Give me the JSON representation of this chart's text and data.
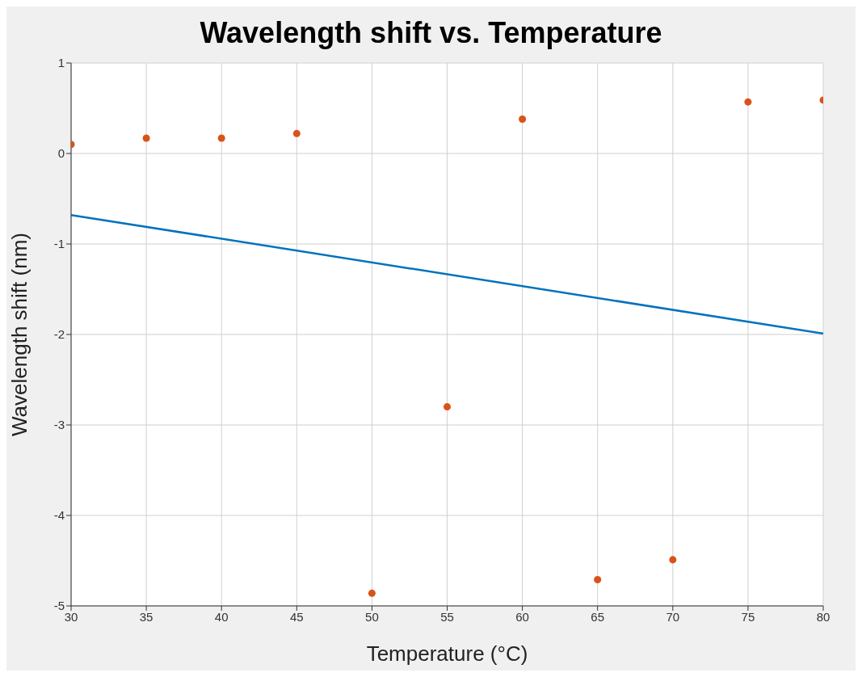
{
  "chart_data": {
    "type": "scatter",
    "title": "Wavelength shift vs. Temperature",
    "xlabel": "Temperature (°C)",
    "ylabel": "Wavelength shift (nm)",
    "series": [
      {
        "color": "#d95319",
        "marker": "circle",
        "x": [
          30,
          35,
          40,
          45,
          50,
          55,
          60,
          65,
          70,
          75,
          80
        ],
        "values": [
          0.1,
          0.17,
          0.17,
          0.22,
          -4.86,
          -2.8,
          0.38,
          -4.71,
          -4.49,
          0.57,
          0.59
        ]
      },
      {
        "type": "line",
        "color": "#0072bd",
        "x": [
          30,
          80
        ],
        "values": [
          -0.68,
          -1.99
        ]
      }
    ],
    "xlim": [
      30,
      80
    ],
    "xticks": [
      30,
      35,
      40,
      45,
      50,
      55,
      60,
      65,
      70,
      75,
      80
    ],
    "ylim": [
      -5,
      1
    ],
    "yticks": [
      -5,
      -4,
      -3,
      -2,
      -1,
      0,
      1
    ],
    "grid": true,
    "line_style": "solid"
  }
}
